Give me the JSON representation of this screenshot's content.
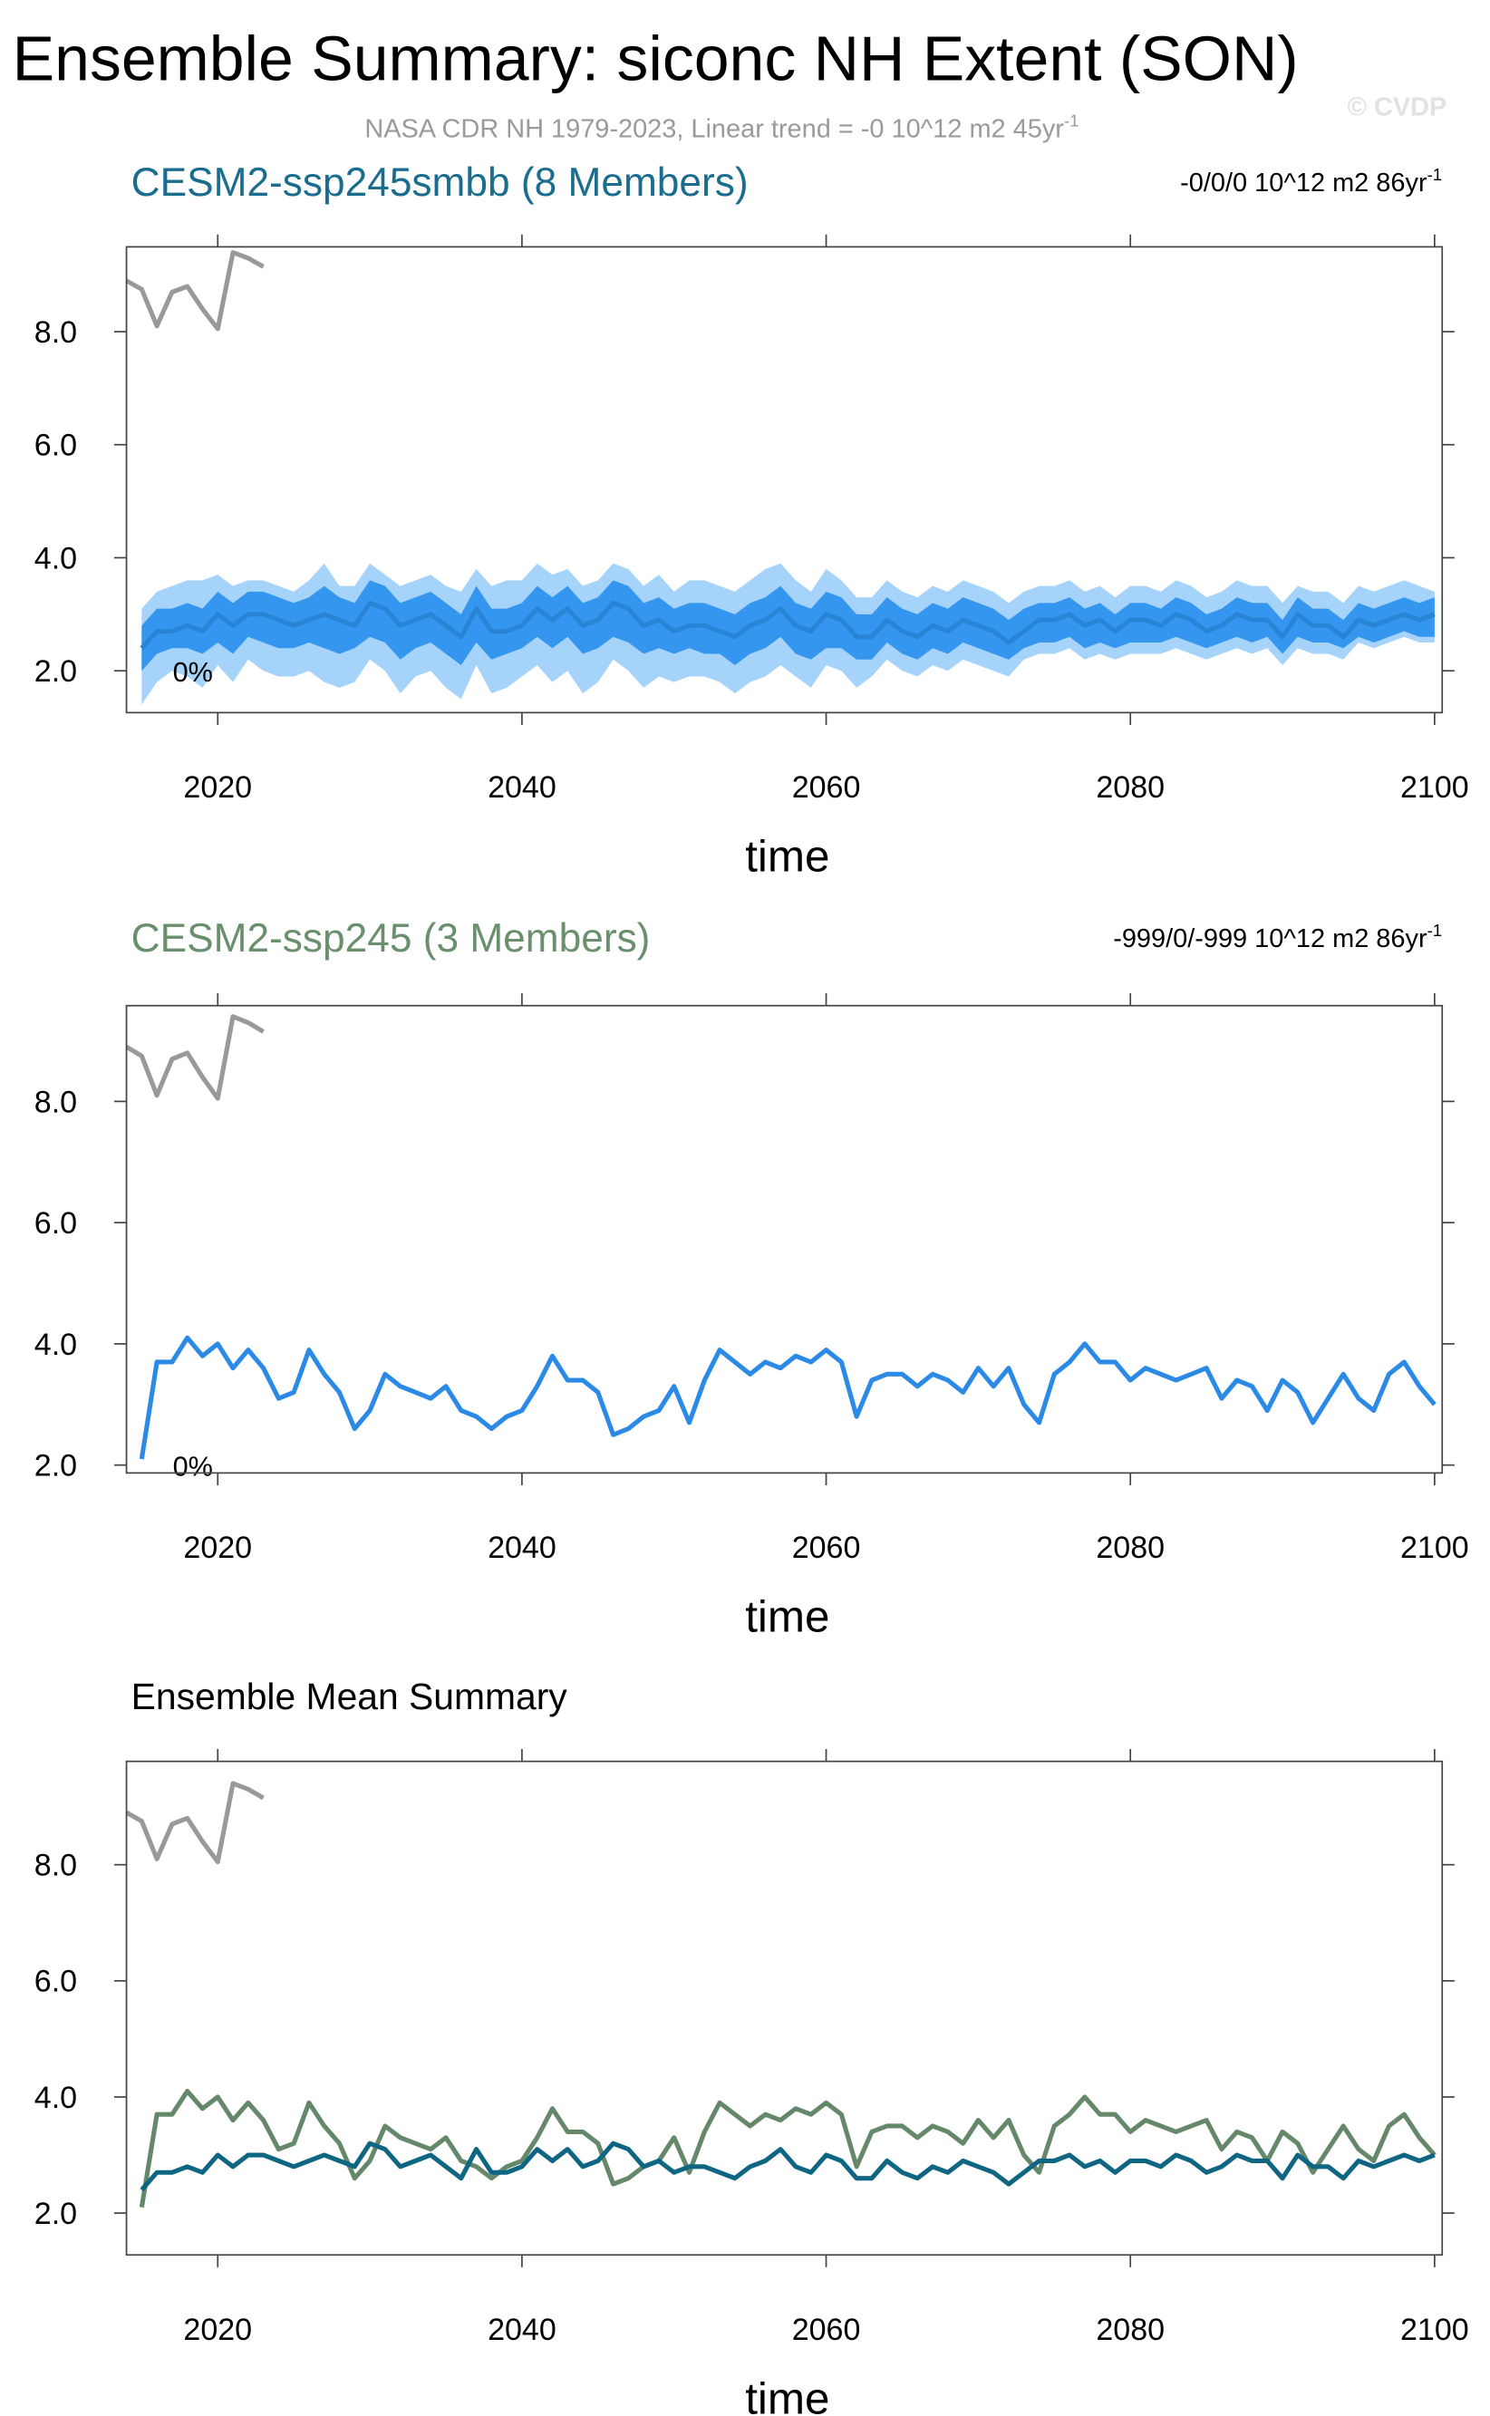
{
  "title": "Ensemble Summary: siconc NH Extent (SON)",
  "subtitle": "NASA CDR NH 1979-2023, Linear trend = -0 10^12 m2 45yr",
  "subtitle_sup": "-1",
  "watermark": "© CVDP",
  "chart_data": [
    {
      "type": "line",
      "title": "CESM2-ssp245smbb (8 Members)",
      "title_color": "#1a6d8e",
      "trend": "-0/0/0 10^12 m2 86yr",
      "trend_sup": "-1",
      "annotation": "0%",
      "xlabel": "time",
      "xlim": [
        2014,
        2100.5
      ],
      "xticks": [
        2020,
        2040,
        2060,
        2080,
        2100
      ],
      "ylim": [
        1.26,
        9.5
      ],
      "yticks": [
        {
          "value": 2,
          "label": "2.0"
        },
        {
          "value": 4,
          "label": "4.0"
        },
        {
          "value": 6,
          "label": "6.0"
        },
        {
          "value": 8,
          "label": "8.0"
        }
      ],
      "x": [
        2015,
        2016,
        2017,
        2018,
        2019,
        2020,
        2021,
        2022,
        2023,
        2024,
        2025,
        2026,
        2027,
        2028,
        2029,
        2030,
        2031,
        2032,
        2033,
        2034,
        2035,
        2036,
        2037,
        2038,
        2039,
        2040,
        2041,
        2042,
        2043,
        2044,
        2045,
        2046,
        2047,
        2048,
        2049,
        2050,
        2051,
        2052,
        2053,
        2054,
        2055,
        2056,
        2057,
        2058,
        2059,
        2060,
        2061,
        2062,
        2063,
        2064,
        2065,
        2066,
        2067,
        2068,
        2069,
        2070,
        2071,
        2072,
        2073,
        2074,
        2075,
        2076,
        2077,
        2078,
        2079,
        2080,
        2081,
        2082,
        2083,
        2084,
        2085,
        2086,
        2087,
        2088,
        2089,
        2090,
        2091,
        2092,
        2093,
        2094,
        2095,
        2096,
        2097,
        2098,
        2099,
        2100
      ],
      "bands": [
        {
          "color": "#a6d3fa",
          "lower": [
            1.4,
            1.8,
            2.0,
            1.9,
            1.7,
            2.1,
            1.8,
            2.2,
            2.0,
            1.9,
            1.9,
            2.0,
            1.8,
            1.7,
            1.8,
            2.2,
            2.0,
            1.6,
            1.9,
            2.0,
            1.7,
            1.5,
            2.1,
            1.6,
            1.7,
            1.9,
            2.1,
            1.8,
            2.0,
            1.6,
            1.8,
            2.2,
            2.0,
            1.7,
            1.9,
            1.8,
            1.9,
            1.9,
            1.8,
            1.6,
            1.8,
            1.9,
            2.1,
            1.9,
            1.7,
            2.1,
            2.0,
            1.7,
            1.9,
            2.2,
            2.0,
            1.9,
            2.1,
            2.0,
            2.2,
            2.1,
            2.0,
            1.9,
            2.2,
            2.3,
            2.3,
            2.4,
            2.2,
            2.3,
            2.2,
            2.3,
            2.3,
            2.3,
            2.4,
            2.3,
            2.2,
            2.3,
            2.4,
            2.3,
            2.4,
            2.1,
            2.4,
            2.3,
            2.3,
            2.2,
            2.5,
            2.4,
            2.5,
            2.6,
            2.5,
            2.5
          ],
          "upper": [
            3.1,
            3.4,
            3.5,
            3.6,
            3.6,
            3.7,
            3.5,
            3.6,
            3.6,
            3.5,
            3.4,
            3.6,
            3.9,
            3.5,
            3.5,
            3.9,
            3.7,
            3.5,
            3.6,
            3.7,
            3.5,
            3.4,
            3.8,
            3.5,
            3.6,
            3.6,
            3.9,
            3.7,
            3.8,
            3.5,
            3.6,
            3.9,
            3.8,
            3.5,
            3.7,
            3.4,
            3.6,
            3.6,
            3.5,
            3.4,
            3.6,
            3.8,
            3.9,
            3.6,
            3.4,
            3.8,
            3.6,
            3.3,
            3.3,
            3.6,
            3.4,
            3.3,
            3.5,
            3.4,
            3.6,
            3.5,
            3.4,
            3.2,
            3.4,
            3.5,
            3.5,
            3.6,
            3.4,
            3.5,
            3.3,
            3.5,
            3.5,
            3.4,
            3.6,
            3.5,
            3.3,
            3.4,
            3.6,
            3.5,
            3.5,
            3.2,
            3.5,
            3.4,
            3.4,
            3.2,
            3.5,
            3.4,
            3.5,
            3.6,
            3.5,
            3.4
          ]
        },
        {
          "color": "#3596ef",
          "lower": [
            2.0,
            2.3,
            2.4,
            2.4,
            2.3,
            2.5,
            2.3,
            2.6,
            2.5,
            2.4,
            2.4,
            2.5,
            2.4,
            2.3,
            2.4,
            2.6,
            2.5,
            2.2,
            2.4,
            2.5,
            2.3,
            2.1,
            2.5,
            2.2,
            2.3,
            2.4,
            2.6,
            2.4,
            2.6,
            2.3,
            2.4,
            2.6,
            2.5,
            2.3,
            2.4,
            2.3,
            2.4,
            2.3,
            2.3,
            2.1,
            2.3,
            2.4,
            2.6,
            2.3,
            2.2,
            2.4,
            2.4,
            2.2,
            2.2,
            2.5,
            2.3,
            2.2,
            2.4,
            2.3,
            2.5,
            2.4,
            2.3,
            2.2,
            2.4,
            2.5,
            2.5,
            2.6,
            2.4,
            2.5,
            2.4,
            2.5,
            2.5,
            2.5,
            2.6,
            2.5,
            2.4,
            2.5,
            2.6,
            2.5,
            2.6,
            2.3,
            2.6,
            2.5,
            2.5,
            2.4,
            2.6,
            2.5,
            2.6,
            2.7,
            2.6,
            2.6
          ],
          "upper": [
            2.8,
            3.1,
            3.1,
            3.2,
            3.1,
            3.4,
            3.2,
            3.4,
            3.4,
            3.3,
            3.2,
            3.3,
            3.5,
            3.3,
            3.2,
            3.6,
            3.5,
            3.2,
            3.3,
            3.4,
            3.2,
            3.0,
            3.5,
            3.1,
            3.1,
            3.2,
            3.5,
            3.3,
            3.5,
            3.2,
            3.3,
            3.6,
            3.5,
            3.2,
            3.3,
            3.1,
            3.2,
            3.2,
            3.1,
            3.0,
            3.2,
            3.3,
            3.5,
            3.2,
            3.1,
            3.4,
            3.3,
            3.0,
            3.0,
            3.3,
            3.1,
            3.0,
            3.2,
            3.1,
            3.3,
            3.2,
            3.1,
            2.9,
            3.1,
            3.2,
            3.2,
            3.3,
            3.1,
            3.2,
            3.0,
            3.2,
            3.2,
            3.1,
            3.3,
            3.2,
            3.0,
            3.1,
            3.3,
            3.2,
            3.2,
            2.9,
            3.3,
            3.1,
            3.1,
            2.9,
            3.2,
            3.1,
            3.2,
            3.3,
            3.2,
            3.3
          ]
        }
      ],
      "series": [
        {
          "color": "#999999",
          "x": [
            2014,
            2015,
            2016,
            2017,
            2018,
            2019,
            2020,
            2021,
            2022,
            2023
          ],
          "values": [
            8.9,
            8.75,
            8.1,
            8.7,
            8.8,
            8.4,
            8.05,
            9.4,
            9.3,
            9.15
          ]
        },
        {
          "color": "#2a84d6",
          "values": [
            2.4,
            2.7,
            2.7,
            2.8,
            2.7,
            3.0,
            2.8,
            3.0,
            3.0,
            2.9,
            2.8,
            2.9,
            3.0,
            2.9,
            2.8,
            3.2,
            3.1,
            2.8,
            2.9,
            3.0,
            2.8,
            2.6,
            3.1,
            2.7,
            2.7,
            2.8,
            3.1,
            2.9,
            3.1,
            2.8,
            2.9,
            3.2,
            3.1,
            2.8,
            2.9,
            2.7,
            2.8,
            2.8,
            2.7,
            2.6,
            2.8,
            2.9,
            3.1,
            2.8,
            2.7,
            3.0,
            2.9,
            2.6,
            2.6,
            2.9,
            2.7,
            2.6,
            2.8,
            2.7,
            2.9,
            2.8,
            2.7,
            2.5,
            2.7,
            2.9,
            2.9,
            3.0,
            2.8,
            2.9,
            2.7,
            2.9,
            2.9,
            2.8,
            3.0,
            2.9,
            2.7,
            2.8,
            3.0,
            2.9,
            2.9,
            2.6,
            3.0,
            2.8,
            2.8,
            2.6,
            2.9,
            2.8,
            2.9,
            3.0,
            2.9,
            3.0
          ]
        }
      ]
    },
    {
      "type": "line",
      "title": "CESM2-ssp245 (3 Members)",
      "title_color": "#6a8f6c",
      "trend": "-999/0/-999 10^12 m2 86yr",
      "trend_sup": "-1",
      "annotation": "0%",
      "xlabel": "time",
      "xlim": [
        2014,
        2100.5
      ],
      "xticks": [
        2020,
        2040,
        2060,
        2080,
        2100
      ],
      "ylim": [
        1.87,
        9.58
      ],
      "yticks": [
        {
          "value": 2,
          "label": "2.0"
        },
        {
          "value": 4,
          "label": "4.0"
        },
        {
          "value": 6,
          "label": "6.0"
        },
        {
          "value": 8,
          "label": "8.0"
        }
      ],
      "x": [
        2015,
        2016,
        2017,
        2018,
        2019,
        2020,
        2021,
        2022,
        2023,
        2024,
        2025,
        2026,
        2027,
        2028,
        2029,
        2030,
        2031,
        2032,
        2033,
        2034,
        2035,
        2036,
        2037,
        2038,
        2039,
        2040,
        2041,
        2042,
        2043,
        2044,
        2045,
        2046,
        2047,
        2048,
        2049,
        2050,
        2051,
        2052,
        2053,
        2054,
        2055,
        2056,
        2057,
        2058,
        2059,
        2060,
        2061,
        2062,
        2063,
        2064,
        2065,
        2066,
        2067,
        2068,
        2069,
        2070,
        2071,
        2072,
        2073,
        2074,
        2075,
        2076,
        2077,
        2078,
        2079,
        2080,
        2081,
        2082,
        2083,
        2084,
        2085,
        2086,
        2087,
        2088,
        2089,
        2090,
        2091,
        2092,
        2093,
        2094,
        2095,
        2096,
        2097,
        2098,
        2099,
        2100
      ],
      "series": [
        {
          "color": "#999999",
          "x": [
            2014,
            2015,
            2016,
            2017,
            2018,
            2019,
            2020,
            2021,
            2022,
            2023
          ],
          "values": [
            8.9,
            8.75,
            8.1,
            8.7,
            8.8,
            8.4,
            8.05,
            9.4,
            9.3,
            9.15
          ]
        },
        {
          "color": "#2b8ae6",
          "values": [
            2.1,
            3.7,
            3.7,
            4.1,
            3.8,
            4.0,
            3.6,
            3.9,
            3.6,
            3.1,
            3.2,
            3.9,
            3.5,
            3.2,
            2.6,
            2.9,
            3.5,
            3.3,
            3.2,
            3.1,
            3.3,
            2.9,
            2.8,
            2.6,
            2.8,
            2.9,
            3.3,
            3.8,
            3.4,
            3.4,
            3.2,
            2.5,
            2.6,
            2.8,
            2.9,
            3.3,
            2.7,
            3.4,
            3.9,
            3.7,
            3.5,
            3.7,
            3.6,
            3.8,
            3.7,
            3.9,
            3.7,
            2.8,
            3.4,
            3.5,
            3.5,
            3.3,
            3.5,
            3.4,
            3.2,
            3.6,
            3.3,
            3.6,
            3.0,
            2.7,
            3.5,
            3.7,
            4.0,
            3.7,
            3.7,
            3.4,
            3.6,
            3.5,
            3.4,
            3.5,
            3.6,
            3.1,
            3.4,
            3.3,
            2.9,
            3.4,
            3.2,
            2.7,
            3.1,
            3.5,
            3.1,
            2.9,
            3.5,
            3.7,
            3.3,
            3.0
          ]
        }
      ]
    },
    {
      "type": "line",
      "title": "Ensemble Mean Summary",
      "title_color": "#000000",
      "xlabel": "time",
      "xlim": [
        2014,
        2100.5
      ],
      "xticks": [
        2020,
        2040,
        2060,
        2080,
        2100
      ],
      "ylim": [
        1.28,
        9.78
      ],
      "yticks": [
        {
          "value": 2,
          "label": "2.0"
        },
        {
          "value": 4,
          "label": "4.0"
        },
        {
          "value": 6,
          "label": "6.0"
        },
        {
          "value": 8,
          "label": "8.0"
        }
      ],
      "x": [
        2015,
        2016,
        2017,
        2018,
        2019,
        2020,
        2021,
        2022,
        2023,
        2024,
        2025,
        2026,
        2027,
        2028,
        2029,
        2030,
        2031,
        2032,
        2033,
        2034,
        2035,
        2036,
        2037,
        2038,
        2039,
        2040,
        2041,
        2042,
        2043,
        2044,
        2045,
        2046,
        2047,
        2048,
        2049,
        2050,
        2051,
        2052,
        2053,
        2054,
        2055,
        2056,
        2057,
        2058,
        2059,
        2060,
        2061,
        2062,
        2063,
        2064,
        2065,
        2066,
        2067,
        2068,
        2069,
        2070,
        2071,
        2072,
        2073,
        2074,
        2075,
        2076,
        2077,
        2078,
        2079,
        2080,
        2081,
        2082,
        2083,
        2084,
        2085,
        2086,
        2087,
        2088,
        2089,
        2090,
        2091,
        2092,
        2093,
        2094,
        2095,
        2096,
        2097,
        2098,
        2099,
        2100
      ],
      "series": [
        {
          "color": "#999999",
          "x": [
            2014,
            2015,
            2016,
            2017,
            2018,
            2019,
            2020,
            2021,
            2022,
            2023
          ],
          "values": [
            8.9,
            8.75,
            8.1,
            8.7,
            8.8,
            8.4,
            8.05,
            9.4,
            9.3,
            9.15
          ]
        },
        {
          "color": "#66886a",
          "values": [
            2.1,
            3.7,
            3.7,
            4.1,
            3.8,
            4.0,
            3.6,
            3.9,
            3.6,
            3.1,
            3.2,
            3.9,
            3.5,
            3.2,
            2.6,
            2.9,
            3.5,
            3.3,
            3.2,
            3.1,
            3.3,
            2.9,
            2.8,
            2.6,
            2.8,
            2.9,
            3.3,
            3.8,
            3.4,
            3.4,
            3.2,
            2.5,
            2.6,
            2.8,
            2.9,
            3.3,
            2.7,
            3.4,
            3.9,
            3.7,
            3.5,
            3.7,
            3.6,
            3.8,
            3.7,
            3.9,
            3.7,
            2.8,
            3.4,
            3.5,
            3.5,
            3.3,
            3.5,
            3.4,
            3.2,
            3.6,
            3.3,
            3.6,
            3.0,
            2.7,
            3.5,
            3.7,
            4.0,
            3.7,
            3.7,
            3.4,
            3.6,
            3.5,
            3.4,
            3.5,
            3.6,
            3.1,
            3.4,
            3.3,
            2.9,
            3.4,
            3.2,
            2.7,
            3.1,
            3.5,
            3.1,
            2.9,
            3.5,
            3.7,
            3.3,
            3.0
          ]
        },
        {
          "color": "#0f6682",
          "values": [
            2.4,
            2.7,
            2.7,
            2.8,
            2.7,
            3.0,
            2.8,
            3.0,
            3.0,
            2.9,
            2.8,
            2.9,
            3.0,
            2.9,
            2.8,
            3.2,
            3.1,
            2.8,
            2.9,
            3.0,
            2.8,
            2.6,
            3.1,
            2.7,
            2.7,
            2.8,
            3.1,
            2.9,
            3.1,
            2.8,
            2.9,
            3.2,
            3.1,
            2.8,
            2.9,
            2.7,
            2.8,
            2.8,
            2.7,
            2.6,
            2.8,
            2.9,
            3.1,
            2.8,
            2.7,
            3.0,
            2.9,
            2.6,
            2.6,
            2.9,
            2.7,
            2.6,
            2.8,
            2.7,
            2.9,
            2.8,
            2.7,
            2.5,
            2.7,
            2.9,
            2.9,
            3.0,
            2.8,
            2.9,
            2.7,
            2.9,
            2.9,
            2.8,
            3.0,
            2.9,
            2.7,
            2.8,
            3.0,
            2.9,
            2.9,
            2.6,
            3.0,
            2.8,
            2.8,
            2.6,
            2.9,
            2.8,
            2.9,
            3.0,
            2.9,
            3.0
          ]
        }
      ]
    }
  ]
}
